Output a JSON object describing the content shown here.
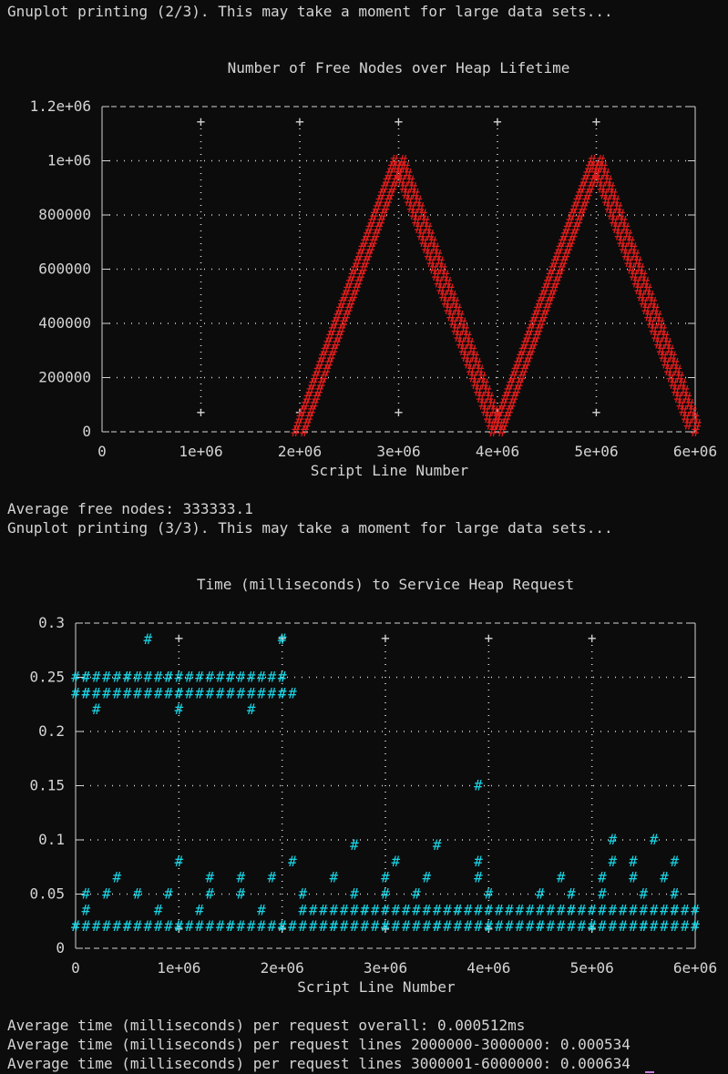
{
  "terminal": {
    "lines": {
      "print_2": "Gnuplot printing (2/3). This may take a moment for large data sets...",
      "avg_free": "Average free nodes: 333333.1",
      "print_3": "Gnuplot printing (3/3). This may take a moment for large data sets...",
      "avg_overall": "Average time (milliseconds) per request overall: 0.000512ms",
      "avg_2m_3m": "Average time (milliseconds) per request lines 2000000-3000000: 0.000534",
      "avg_3m_6m": "Average time (milliseconds) per request lines 3000001-6000000: 0.000634"
    }
  },
  "colors": {
    "background": "#0c0c0c",
    "text": "#d4d4d4",
    "series_free_nodes": "#e11d1d",
    "series_time": "#19d6e6",
    "cursor": "#c678dd"
  },
  "chart_data": [
    {
      "type": "line",
      "title": "Number of Free Nodes over Heap Lifetime",
      "xlabel": "Script Line Number",
      "ylabel": "",
      "xlim": [
        0,
        6000000
      ],
      "ylim": [
        0,
        1200000
      ],
      "xticks": [
        "0",
        "1e+06",
        "2e+06",
        "3e+06",
        "4e+06",
        "5e+06",
        "6e+06"
      ],
      "yticks": [
        "0",
        "200000",
        "400000",
        "600000",
        "800000",
        "1e+06",
        "1.2e+06"
      ],
      "grid": true,
      "series": [
        {
          "marker": "#",
          "x": [
            2000000,
            2500000,
            3000000,
            3500000,
            4000000,
            4500000,
            5000000,
            5500000,
            6000000
          ],
          "y": [
            0,
            500000,
            1000000,
            500000,
            0,
            500000,
            1000000,
            500000,
            0
          ]
        }
      ]
    },
    {
      "type": "scatter",
      "title": "Time (milliseconds) to Service Heap Request",
      "xlabel": "Script Line Number",
      "ylabel": "",
      "xlim": [
        0,
        6000000
      ],
      "ylim": [
        0,
        0.3
      ],
      "xticks": [
        "0",
        "1e+06",
        "2e+06",
        "3e+06",
        "4e+06",
        "5e+06",
        "6e+06"
      ],
      "yticks": [
        "0",
        "0.05",
        "0.1",
        "0.15",
        "0.2",
        "0.25",
        "0.3"
      ],
      "grid": true,
      "series": [
        {
          "marker": "#",
          "points": [
            [
              700000,
              0.285
            ],
            [
              2000000,
              0.285
            ],
            [
              100000,
              0.25
            ],
            [
              500000,
              0.25
            ],
            [
              900000,
              0.25
            ],
            [
              1500000,
              0.25
            ],
            [
              2000000,
              0.25
            ],
            [
              100000,
              0.235
            ],
            [
              1000000,
              0.235
            ],
            [
              2000000,
              0.235
            ],
            [
              200000,
              0.22
            ],
            [
              1000000,
              0.22
            ],
            [
              1700000,
              0.22
            ],
            [
              3900000,
              0.15
            ],
            [
              2700000,
              0.095
            ],
            [
              3500000,
              0.095
            ],
            [
              5200000,
              0.1
            ],
            [
              5600000,
              0.1
            ],
            [
              1000000,
              0.08
            ],
            [
              2100000,
              0.08
            ],
            [
              3100000,
              0.08
            ],
            [
              3900000,
              0.08
            ],
            [
              5200000,
              0.08
            ],
            [
              5400000,
              0.08
            ],
            [
              5800000,
              0.08
            ],
            [
              400000,
              0.065
            ],
            [
              1300000,
              0.065
            ],
            [
              1600000,
              0.065
            ],
            [
              1900000,
              0.065
            ],
            [
              2500000,
              0.065
            ],
            [
              3000000,
              0.065
            ],
            [
              3400000,
              0.065
            ],
            [
              3900000,
              0.065
            ],
            [
              4700000,
              0.065
            ],
            [
              5100000,
              0.065
            ],
            [
              5400000,
              0.065
            ],
            [
              5700000,
              0.065
            ],
            [
              100000,
              0.05
            ],
            [
              300000,
              0.05
            ],
            [
              600000,
              0.05
            ],
            [
              900000,
              0.05
            ],
            [
              1300000,
              0.05
            ],
            [
              1600000,
              0.05
            ],
            [
              2200000,
              0.05
            ],
            [
              2700000,
              0.05
            ],
            [
              3000000,
              0.05
            ],
            [
              3300000,
              0.05
            ],
            [
              4000000,
              0.05
            ],
            [
              4500000,
              0.05
            ],
            [
              4800000,
              0.05
            ],
            [
              5100000,
              0.05
            ],
            [
              5500000,
              0.05
            ],
            [
              5800000,
              0.05
            ],
            [
              100000,
              0.035
            ],
            [
              800000,
              0.035
            ],
            [
              1200000,
              0.035
            ],
            [
              1800000,
              0.035
            ],
            [
              2800000,
              0.035
            ],
            [
              3700000,
              0.035
            ],
            [
              4800000,
              0.035
            ],
            [
              5800000,
              0.035
            ],
            [
              0,
              0.02
            ],
            [
              500000,
              0.02
            ],
            [
              1000000,
              0.02
            ],
            [
              1500000,
              0.02
            ],
            [
              2000000,
              0.02
            ],
            [
              2500000,
              0.02
            ],
            [
              3000000,
              0.02
            ],
            [
              3500000,
              0.02
            ],
            [
              4000000,
              0.02
            ],
            [
              4500000,
              0.02
            ],
            [
              5000000,
              0.02
            ],
            [
              5500000,
              0.02
            ],
            [
              6000000,
              0.02
            ]
          ]
        }
      ]
    }
  ]
}
